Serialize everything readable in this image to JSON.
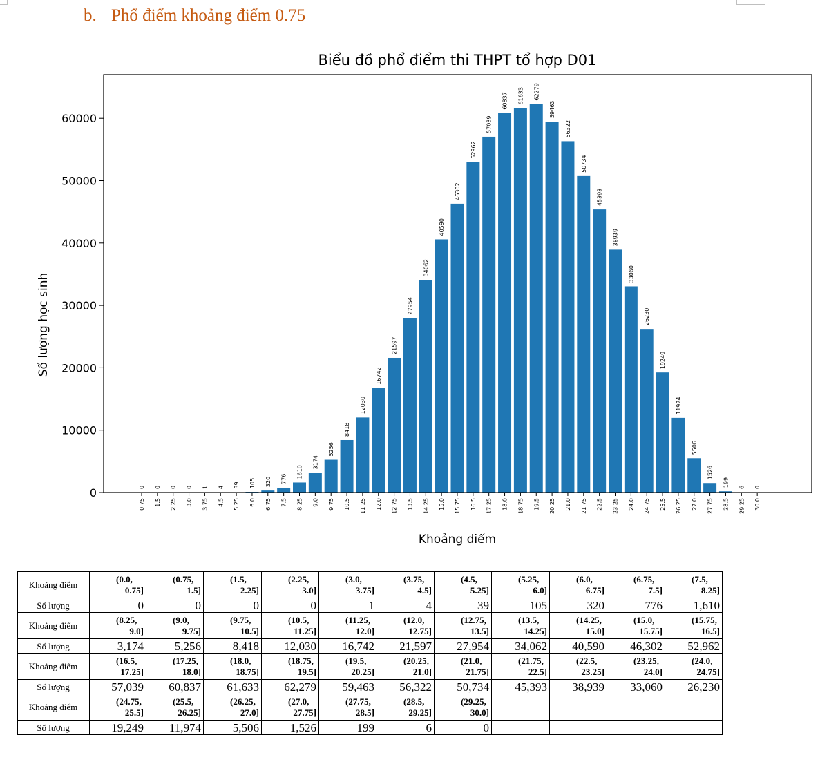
{
  "heading": {
    "number": "b.",
    "text": "Phổ điểm khoảng điểm 0.75",
    "color": "#c55a11"
  },
  "chart_data": {
    "type": "bar",
    "title": "Biểu đồ phổ điểm thi THPT tổ hợp D01",
    "xlabel": "Khoảng điểm",
    "ylabel": "Số lượng học sinh",
    "bar_color": "#1f77b4",
    "ylim": [
      0,
      67000
    ],
    "yticks": [
      0,
      10000,
      20000,
      30000,
      40000,
      50000,
      60000
    ],
    "grid": false,
    "categories": [
      "0.75",
      "1.5",
      "2.25",
      "3.0",
      "3.75",
      "4.5",
      "5.25",
      "6.0",
      "6.75",
      "7.5",
      "8.25",
      "9.0",
      "9.75",
      "10.5",
      "11.25",
      "12.0",
      "12.75",
      "13.5",
      "14.25",
      "15.0",
      "15.75",
      "16.5",
      "17.25",
      "18.0",
      "18.75",
      "19.5",
      "20.25",
      "21.0",
      "21.75",
      "22.5",
      "23.25",
      "24.0",
      "24.75",
      "25.5",
      "26.25",
      "27.0",
      "27.75",
      "28.5",
      "29.25",
      "30.0"
    ],
    "values": [
      0,
      0,
      0,
      0,
      1,
      4,
      39,
      105,
      320,
      776,
      1610,
      3174,
      5256,
      8418,
      12030,
      16742,
      21597,
      27954,
      34062,
      40590,
      46302,
      52962,
      57039,
      60837,
      61633,
      62279,
      59463,
      56322,
      50734,
      45393,
      38939,
      33060,
      26230,
      19249,
      11974,
      5506,
      1526,
      199,
      6,
      0
    ]
  },
  "table": {
    "range_header": "Khoảng điểm",
    "count_header": "Số lượng",
    "rows": [
      {
        "ranges": [
          [
            "(0.0,",
            "0.75]"
          ],
          [
            "(0.75,",
            "1.5]"
          ],
          [
            "(1.5,",
            "2.25]"
          ],
          [
            "(2.25,",
            "3.0]"
          ],
          [
            "(3.0,",
            "3.75]"
          ],
          [
            "(3.75,",
            "4.5]"
          ],
          [
            "(4.5,",
            "5.25]"
          ],
          [
            "(5.25,",
            "6.0]"
          ],
          [
            "(6.0,",
            "6.75]"
          ],
          [
            "(6.75,",
            "7.5]"
          ],
          [
            "(7.5,",
            "8.25]"
          ]
        ],
        "counts": [
          "0",
          "0",
          "0",
          "0",
          "1",
          "4",
          "39",
          "105",
          "320",
          "776",
          "1,610"
        ]
      },
      {
        "ranges": [
          [
            "(8.25,",
            "9.0]"
          ],
          [
            "(9.0,",
            "9.75]"
          ],
          [
            "(9.75,",
            "10.5]"
          ],
          [
            "(10.5,",
            "11.25]"
          ],
          [
            "(11.25,",
            "12.0]"
          ],
          [
            "(12.0,",
            "12.75]"
          ],
          [
            "(12.75,",
            "13.5]"
          ],
          [
            "(13.5,",
            "14.25]"
          ],
          [
            "(14.25,",
            "15.0]"
          ],
          [
            "(15.0,",
            "15.75]"
          ],
          [
            "(15.75,",
            "16.5]"
          ]
        ],
        "counts": [
          "3,174",
          "5,256",
          "8,418",
          "12,030",
          "16,742",
          "21,597",
          "27,954",
          "34,062",
          "40,590",
          "46,302",
          "52,962"
        ]
      },
      {
        "ranges": [
          [
            "(16.5,",
            "17.25]"
          ],
          [
            "(17.25,",
            "18.0]"
          ],
          [
            "(18.0,",
            "18.75]"
          ],
          [
            "(18.75,",
            "19.5]"
          ],
          [
            "(19.5,",
            "20.25]"
          ],
          [
            "(20.25,",
            "21.0]"
          ],
          [
            "(21.0,",
            "21.75]"
          ],
          [
            "(21.75,",
            "22.5]"
          ],
          [
            "(22.5,",
            "23.25]"
          ],
          [
            "(23.25,",
            "24.0]"
          ],
          [
            "(24.0,",
            "24.75]"
          ]
        ],
        "counts": [
          "57,039",
          "60,837",
          "61,633",
          "62,279",
          "59,463",
          "56,322",
          "50,734",
          "45,393",
          "38,939",
          "33,060",
          "26,230"
        ]
      },
      {
        "ranges": [
          [
            "(24.75,",
            "25.5]"
          ],
          [
            "(25.5,",
            "26.25]"
          ],
          [
            "(26.25,",
            "27.0]"
          ],
          [
            "(27.0,",
            "27.75]"
          ],
          [
            "(27.75,",
            "28.5]"
          ],
          [
            "(28.5,",
            "29.25]"
          ],
          [
            "(29.25,",
            "30.0]"
          ],
          [
            "",
            ""
          ],
          [
            "",
            ""
          ],
          [
            "",
            ""
          ],
          [
            "",
            ""
          ]
        ],
        "counts": [
          "19,249",
          "11,974",
          "5,506",
          "1,526",
          "199",
          "6",
          "0",
          "",
          "",
          "",
          ""
        ]
      }
    ]
  }
}
